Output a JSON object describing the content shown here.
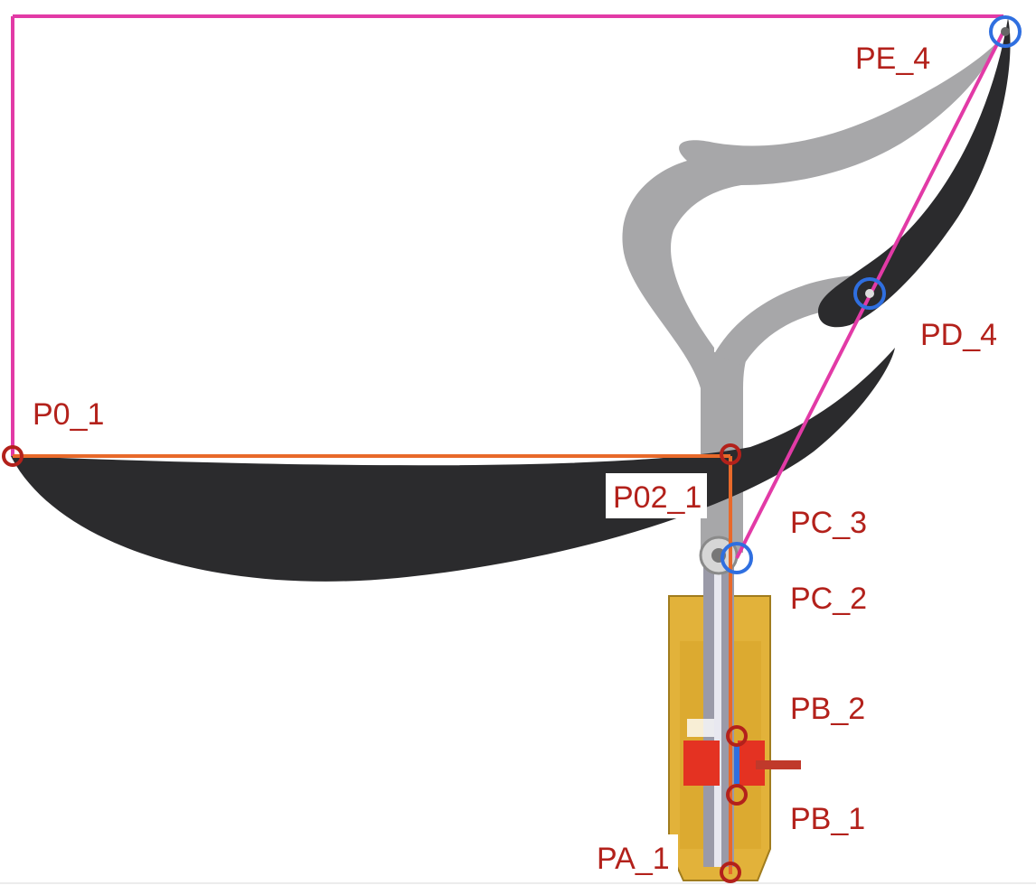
{
  "colors": {
    "pink": "#e23aa6",
    "orange": "#e8692a",
    "red_marker": "#b3211b",
    "blue_marker": "#2f6fe0",
    "label_text": "#b3211b",
    "dark_arm": "#2b2b2d",
    "light_arm": "#a7a7a9",
    "housing": "#e2b23a",
    "red_part": "#e43222"
  },
  "labels": {
    "p0_1": "P0_1",
    "p02_1": "P02_1",
    "pa_1": "PA_1",
    "pb_1": "PB_1",
    "pb_2": "PB_2",
    "pc_2": "PC_2",
    "pc_3": "PC_3",
    "pd_4": "PD_4",
    "pe_4": "PE_4"
  }
}
